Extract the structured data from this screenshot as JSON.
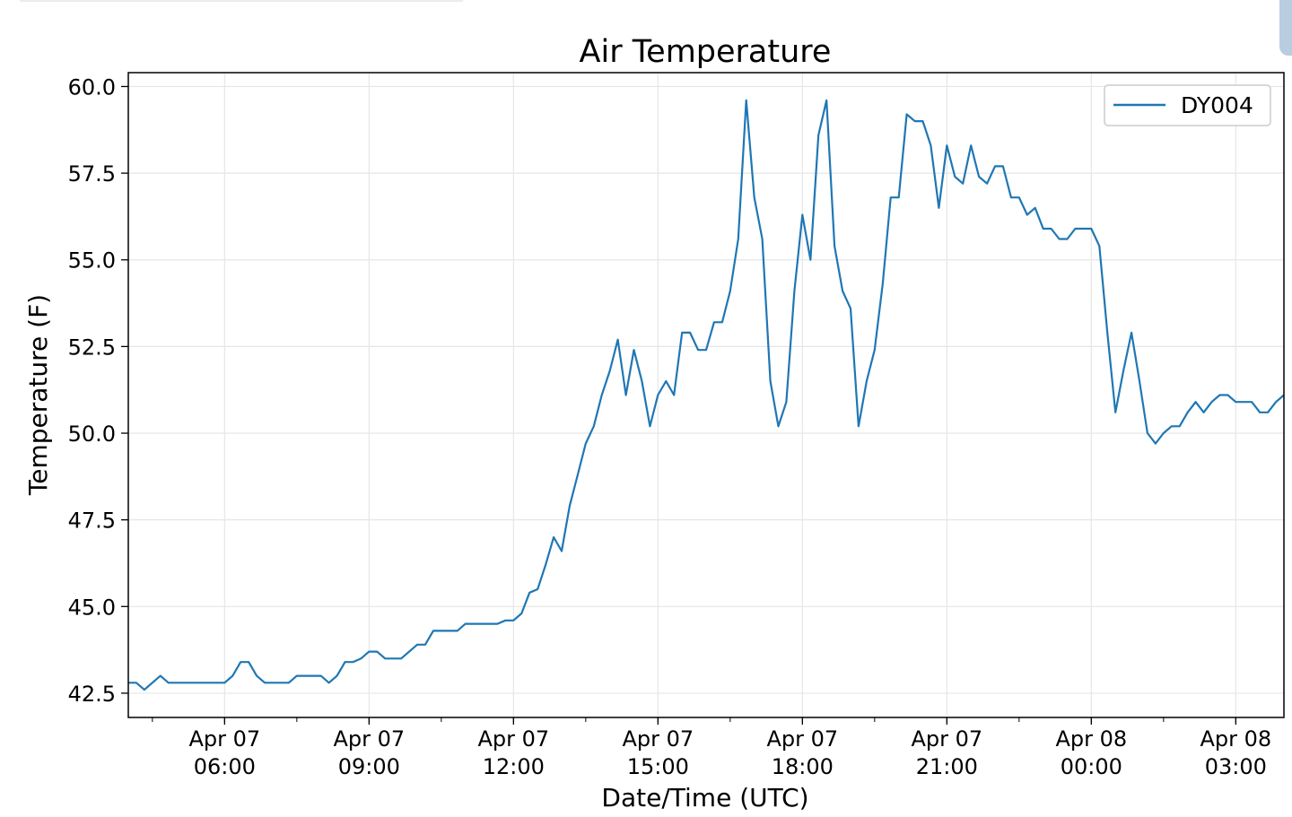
{
  "chart_data": {
    "type": "line",
    "title": "Air Temperature",
    "xlabel": "Date/Time (UTC)",
    "ylabel": "Temperature (F)",
    "x_tick_labels": [
      [
        "Apr 07",
        "06:00"
      ],
      [
        "Apr 07",
        "09:00"
      ],
      [
        "Apr 07",
        "12:00"
      ],
      [
        "Apr 07",
        "15:00"
      ],
      [
        "Apr 07",
        "18:00"
      ],
      [
        "Apr 07",
        "21:00"
      ],
      [
        "Apr 08",
        "00:00"
      ],
      [
        "Apr 08",
        "03:00"
      ]
    ],
    "x_tick_times": [
      "2019-04-07 06:00",
      "2019-04-07 09:00",
      "2019-04-07 12:00",
      "2019-04-07 15:00",
      "2019-04-07 18:00",
      "2019-04-07 21:00",
      "2019-04-08 00:00",
      "2019-04-08 03:00"
    ],
    "y_ticks": [
      "42.5",
      "45.0",
      "47.5",
      "50.0",
      "52.5",
      "55.0",
      "57.5",
      "60.0"
    ],
    "xlim": [
      "2019-04-07 04:00",
      "2019-04-08 04:00"
    ],
    "ylim": [
      41.8,
      60.4
    ],
    "grid": true,
    "legend": {
      "position": "top-right",
      "entries": [
        "DY004"
      ]
    },
    "series": [
      {
        "name": "DY004",
        "color": "#1f77b4",
        "x": [
          "2019-04-07 04:00",
          "2019-04-07 04:10",
          "2019-04-07 04:20",
          "2019-04-07 04:30",
          "2019-04-07 04:40",
          "2019-04-07 04:50",
          "2019-04-07 05:00",
          "2019-04-07 05:10",
          "2019-04-07 05:20",
          "2019-04-07 05:30",
          "2019-04-07 05:40",
          "2019-04-07 05:50",
          "2019-04-07 06:00",
          "2019-04-07 06:10",
          "2019-04-07 06:20",
          "2019-04-07 06:30",
          "2019-04-07 06:40",
          "2019-04-07 06:50",
          "2019-04-07 07:00",
          "2019-04-07 07:10",
          "2019-04-07 07:20",
          "2019-04-07 07:30",
          "2019-04-07 07:40",
          "2019-04-07 07:50",
          "2019-04-07 08:00",
          "2019-04-07 08:10",
          "2019-04-07 08:20",
          "2019-04-07 08:30",
          "2019-04-07 08:40",
          "2019-04-07 08:50",
          "2019-04-07 09:00",
          "2019-04-07 09:10",
          "2019-04-07 09:20",
          "2019-04-07 09:30",
          "2019-04-07 09:40",
          "2019-04-07 09:50",
          "2019-04-07 10:00",
          "2019-04-07 10:10",
          "2019-04-07 10:20",
          "2019-04-07 10:30",
          "2019-04-07 10:40",
          "2019-04-07 10:50",
          "2019-04-07 11:00",
          "2019-04-07 11:10",
          "2019-04-07 11:20",
          "2019-04-07 11:30",
          "2019-04-07 11:40",
          "2019-04-07 11:50",
          "2019-04-07 12:00",
          "2019-04-07 12:10",
          "2019-04-07 12:20",
          "2019-04-07 12:30",
          "2019-04-07 12:40",
          "2019-04-07 12:50",
          "2019-04-07 13:00",
          "2019-04-07 13:10",
          "2019-04-07 13:20",
          "2019-04-07 13:30",
          "2019-04-07 13:40",
          "2019-04-07 13:50",
          "2019-04-07 14:00",
          "2019-04-07 14:10",
          "2019-04-07 14:20",
          "2019-04-07 14:30",
          "2019-04-07 14:40",
          "2019-04-07 14:50",
          "2019-04-07 15:00",
          "2019-04-07 15:10",
          "2019-04-07 15:20",
          "2019-04-07 15:30",
          "2019-04-07 15:40",
          "2019-04-07 15:50",
          "2019-04-07 16:00",
          "2019-04-07 16:10",
          "2019-04-07 16:20",
          "2019-04-07 16:30",
          "2019-04-07 16:40",
          "2019-04-07 16:50",
          "2019-04-07 17:00",
          "2019-04-07 17:10",
          "2019-04-07 17:20",
          "2019-04-07 17:30",
          "2019-04-07 17:40",
          "2019-04-07 17:50",
          "2019-04-07 18:00",
          "2019-04-07 18:10",
          "2019-04-07 18:20",
          "2019-04-07 18:30",
          "2019-04-07 18:40",
          "2019-04-07 18:50",
          "2019-04-07 19:00",
          "2019-04-07 19:10",
          "2019-04-07 19:20",
          "2019-04-07 19:30",
          "2019-04-07 19:40",
          "2019-04-07 19:50",
          "2019-04-07 20:00",
          "2019-04-07 20:10",
          "2019-04-07 20:20",
          "2019-04-07 20:30",
          "2019-04-07 20:40",
          "2019-04-07 20:50",
          "2019-04-07 21:00",
          "2019-04-07 21:10",
          "2019-04-07 21:20",
          "2019-04-07 21:30",
          "2019-04-07 21:40",
          "2019-04-07 21:50",
          "2019-04-07 22:00",
          "2019-04-07 22:10",
          "2019-04-07 22:20",
          "2019-04-07 22:30",
          "2019-04-07 22:40",
          "2019-04-07 22:50",
          "2019-04-07 23:00",
          "2019-04-07 23:10",
          "2019-04-07 23:20",
          "2019-04-07 23:30",
          "2019-04-07 23:40",
          "2019-04-07 23:50",
          "2019-04-08 00:00",
          "2019-04-08 00:10",
          "2019-04-08 00:20",
          "2019-04-08 00:30",
          "2019-04-08 00:40",
          "2019-04-08 00:50",
          "2019-04-08 01:00",
          "2019-04-08 01:10",
          "2019-04-08 01:20",
          "2019-04-08 01:30",
          "2019-04-08 01:40",
          "2019-04-08 01:50",
          "2019-04-08 02:00",
          "2019-04-08 02:10",
          "2019-04-08 02:20",
          "2019-04-08 02:30",
          "2019-04-08 02:40",
          "2019-04-08 02:50",
          "2019-04-08 03:00",
          "2019-04-08 03:10",
          "2019-04-08 03:20",
          "2019-04-08 03:30",
          "2019-04-08 03:40",
          "2019-04-08 03:50",
          "2019-04-08 04:00"
        ],
        "y": [
          42.8,
          42.8,
          42.6,
          42.8,
          43.0,
          42.8,
          42.8,
          42.8,
          42.8,
          42.8,
          42.8,
          42.8,
          42.8,
          43.0,
          43.4,
          43.4,
          43.0,
          42.8,
          42.8,
          42.8,
          42.8,
          43.0,
          43.0,
          43.0,
          43.0,
          42.8,
          43.0,
          43.4,
          43.4,
          43.5,
          43.7,
          43.7,
          43.5,
          43.5,
          43.5,
          43.7,
          43.9,
          43.9,
          44.3,
          44.3,
          44.3,
          44.3,
          44.5,
          44.5,
          44.5,
          44.5,
          44.5,
          44.6,
          44.6,
          44.8,
          45.4,
          45.5,
          46.2,
          47.0,
          46.6,
          47.9,
          48.8,
          49.7,
          50.2,
          51.1,
          51.8,
          52.7,
          51.1,
          52.4,
          51.5,
          50.2,
          51.1,
          51.5,
          51.1,
          52.9,
          52.9,
          52.4,
          52.4,
          53.2,
          53.2,
          54.1,
          55.6,
          59.6,
          56.8,
          55.6,
          51.5,
          50.2,
          50.9,
          54.1,
          56.3,
          55.0,
          58.6,
          59.6,
          55.4,
          54.1,
          53.6,
          50.2,
          51.5,
          52.4,
          54.3,
          56.8,
          56.8,
          59.2,
          59.0,
          59.0,
          58.3,
          56.5,
          58.3,
          57.4,
          57.2,
          58.3,
          57.4,
          57.2,
          57.7,
          57.7,
          56.8,
          56.8,
          56.3,
          56.5,
          55.9,
          55.9,
          55.6,
          55.6,
          55.9,
          55.9,
          55.9,
          55.4,
          52.9,
          50.6,
          51.8,
          52.9,
          51.5,
          50.0,
          49.7,
          50.0,
          50.2,
          50.2,
          50.6,
          50.9,
          50.6,
          50.9,
          51.1,
          51.1,
          50.9,
          50.9,
          50.9,
          50.6,
          50.6,
          50.9,
          51.1
        ]
      }
    ]
  }
}
